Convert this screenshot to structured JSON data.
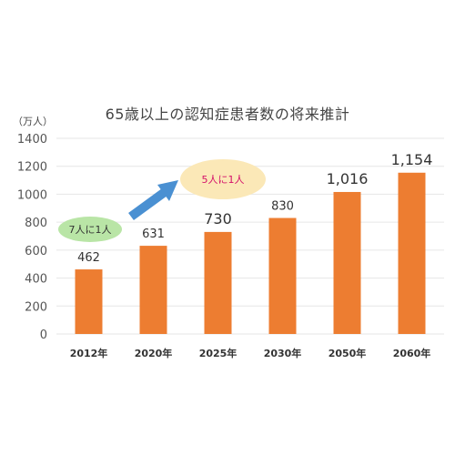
{
  "chart_data": {
    "type": "bar",
    "title": "65歳以上の認知症患者数の将来推計",
    "ylabel": "（万人）",
    "xlabel": "",
    "categories": [
      "2012年",
      "2020年",
      "2025年",
      "2030年",
      "2050年",
      "2060年"
    ],
    "values": [
      462,
      631,
      730,
      830,
      1016,
      1154
    ],
    "data_labels": [
      "462",
      "631",
      "730",
      "830",
      "1,016",
      "1,154"
    ],
    "yticks": [
      0,
      200,
      400,
      600,
      800,
      1000,
      1200,
      1400
    ],
    "ylim": [
      0,
      1400
    ],
    "grid": true,
    "annotations": [
      {
        "text": "7人に1人",
        "color": "#b9e5a6",
        "text_color": "#333333"
      },
      {
        "text": "5人に1人",
        "color": "#fbe8b7",
        "text_color": "#d4106a"
      }
    ]
  },
  "colors": {
    "bar": "#ed7d31",
    "grid": "#e6e6e6",
    "arrow": "#4a90d2"
  }
}
